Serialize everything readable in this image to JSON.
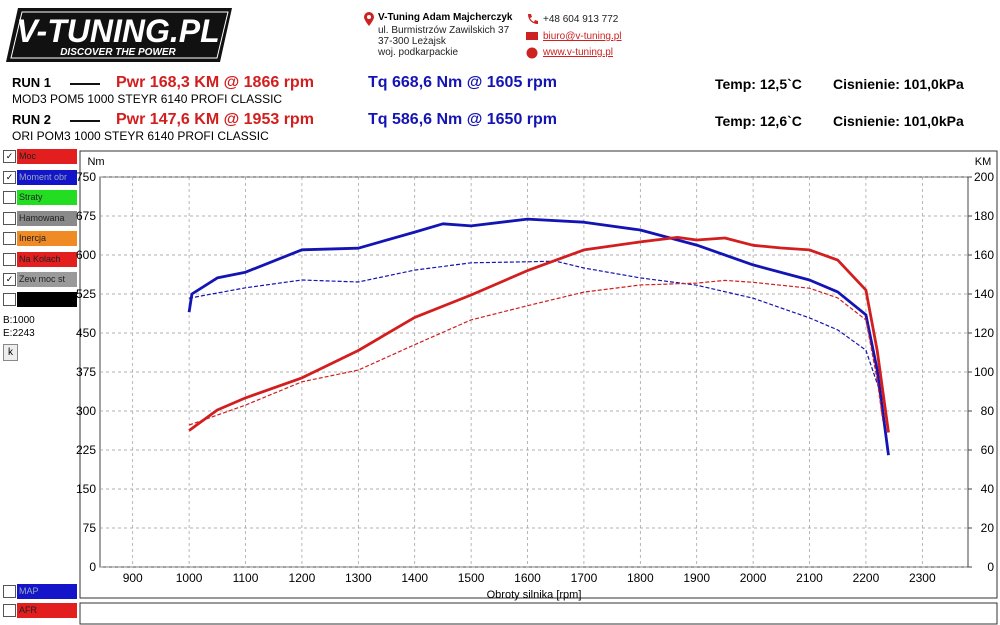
{
  "header": {
    "logo_title": "V-TUNING.PL",
    "logo_subtitle": "DISCOVER THE POWER",
    "company": "V-Tuning Adam Majcherczyk",
    "address": [
      "ul. Burmistrzów Zawilskich 37",
      "37-300 Leżajsk",
      "woj. podkarpackie"
    ],
    "phone": "+48 604 913 772",
    "email": "biuro@v-tuning.pl",
    "website": "www.v-tuning.pl"
  },
  "runs": [
    {
      "label": "RUN 1",
      "pwr": "Pwr  168,3 KM @ 1866 rpm",
      "tq": "Tq 668,6 Nm @ 1605 rpm",
      "description": "MOD3 POM5 1000 STEYR 6140 PROFI CLASSIC",
      "temp": "Temp: 12,5`C",
      "pressure": "Cisnienie: 101,0kPa"
    },
    {
      "label": "RUN 2",
      "pwr": "Pwr  147,6 KM @ 1953 rpm",
      "tq": "Tq 586,6 Nm @ 1650 rpm",
      "description": "ORI POM3 1000 STEYR 6140 PROFI CLASSIC",
      "temp": "Temp: 12,6`C",
      "pressure": "Cisnienie: 101,0kPa"
    }
  ],
  "sidebar": {
    "items": [
      {
        "label": "Moc",
        "color": "#e31e1e",
        "checked": true
      },
      {
        "label": "Moment obr",
        "color": "#1414c8",
        "checked": true
      },
      {
        "label": "Straty",
        "color": "#22dd22",
        "checked": false
      },
      {
        "label": "Hamowana",
        "color": "#8a8a8a",
        "checked": false
      },
      {
        "label": "Inercja",
        "color": "#f08a24",
        "checked": false
      },
      {
        "label": "Na Kolach",
        "color": "#e31e1e",
        "checked": false
      },
      {
        "label": "Zew moc st",
        "color": "#9a9a9a",
        "checked": true
      }
    ],
    "begin": "B:1000",
    "end": "E:2243",
    "button": "k",
    "bottom_items": [
      {
        "label": "MAP",
        "color": "#1414c8",
        "checked": false
      },
      {
        "label": "AFR",
        "color": "#e31e1e",
        "checked": false
      }
    ]
  },
  "chart_data": {
    "type": "line",
    "x_label": "Obroty silnika [rpm]",
    "y_label": "Nm",
    "y2_label": "KM",
    "grid": true,
    "xlim": [
      842,
      2381
    ],
    "xticks": [
      900,
      1000,
      1100,
      1200,
      1300,
      1400,
      1500,
      1600,
      1700,
      1800,
      1900,
      2000,
      2100,
      2200,
      2300
    ],
    "ylim": [
      0,
      750
    ],
    "yticks": [
      0,
      75,
      150,
      225,
      300,
      375,
      450,
      525,
      600,
      675,
      750
    ],
    "y2lim": [
      0,
      200
    ],
    "y2ticks": [
      0,
      20,
      40,
      60,
      80,
      100,
      120,
      140,
      160,
      180,
      200
    ],
    "series": [
      {
        "name": "Tq RUN 1",
        "color": "#1414b4",
        "dashed": false,
        "x": [
          1000,
          1005,
          1050,
          1100,
          1200,
          1300,
          1400,
          1450,
          1500,
          1600,
          1700,
          1800,
          1900,
          2000,
          2100,
          2150,
          2200,
          2220,
          2240
        ],
        "values": [
          490,
          525,
          556,
          567,
          610,
          613,
          644,
          660,
          656,
          669,
          663,
          648,
          619,
          581,
          552,
          529,
          485,
          379,
          215
        ]
      },
      {
        "name": "Tq RUN 2",
        "color": "#1414b4",
        "dashed": true,
        "x": [
          1000,
          1100,
          1200,
          1300,
          1400,
          1500,
          1600,
          1650,
          1700,
          1800,
          1900,
          2000,
          2100,
          2150,
          2200,
          2230
        ],
        "values": [
          517,
          537,
          552,
          548,
          571,
          585,
          587,
          588,
          575,
          556,
          542,
          517,
          479,
          456,
          417,
          321
        ]
      },
      {
        "name": "Pwr RUN 1",
        "color": "#d21e1e",
        "dashed": false,
        "axis": "y2",
        "x": [
          1000,
          1050,
          1100,
          1200,
          1300,
          1400,
          1500,
          1600,
          1700,
          1800,
          1866,
          1900,
          1950,
          2000,
          2050,
          2100,
          2150,
          2200,
          2220,
          2240
        ],
        "values": [
          70,
          80.5,
          86.7,
          97,
          111,
          128,
          139.5,
          152,
          162.6,
          166.7,
          169,
          167.7,
          168.7,
          165,
          163.6,
          162.6,
          157.4,
          142,
          111,
          69
        ]
      },
      {
        "name": "Pwr RUN 2",
        "color": "#d21e1e",
        "dashed": true,
        "axis": "y2",
        "x": [
          1000,
          1100,
          1200,
          1300,
          1400,
          1500,
          1600,
          1700,
          1800,
          1900,
          1950,
          2000,
          2100,
          2150,
          2200,
          2220,
          2230
        ],
        "values": [
          72.8,
          83,
          95,
          101,
          114,
          126.7,
          134,
          141,
          144.6,
          145.6,
          147,
          146,
          143,
          138,
          126.7,
          96,
          75
        ]
      }
    ]
  }
}
